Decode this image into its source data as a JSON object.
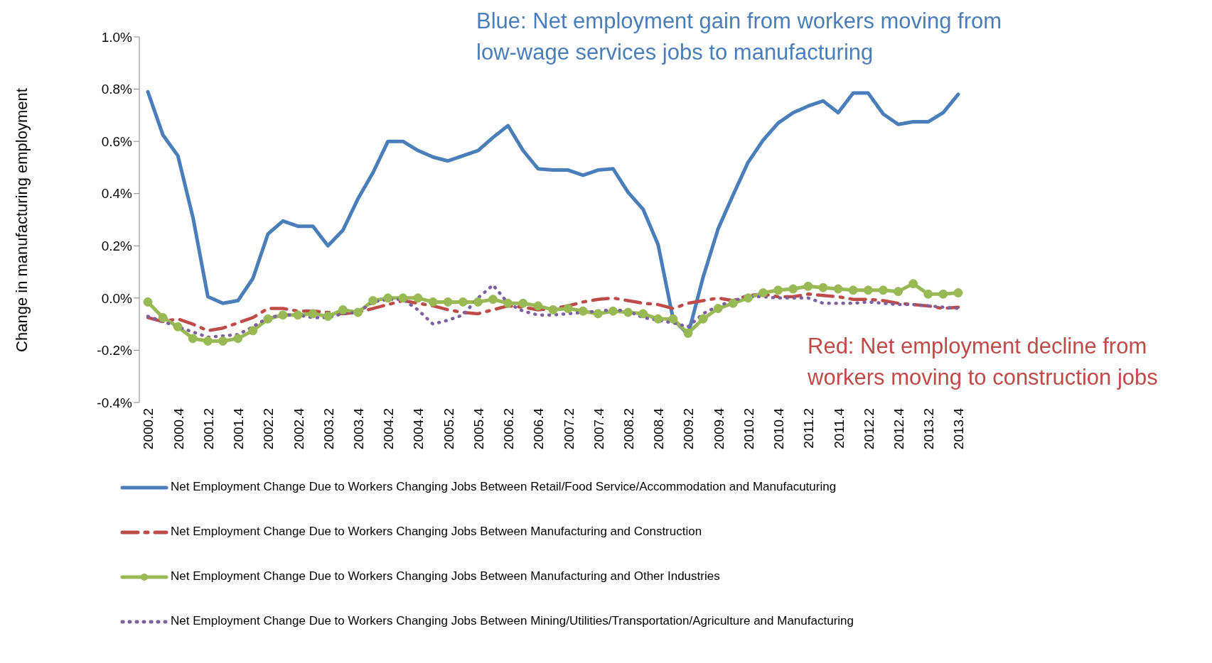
{
  "chart_data": {
    "type": "line",
    "ylabel": "Change in manufacturing employment",
    "annotations": [
      "Blue: Net employment gain from workers moving from low-wage services jobs to manufacturing",
      "Red: Net employment decline from workers moving to construction jobs"
    ],
    "categories": [
      "2000.2",
      null,
      "2000.4",
      null,
      "2001.2",
      null,
      "2001.4",
      null,
      "2002.2",
      null,
      "2002.4",
      null,
      "2003.2",
      null,
      "2003.4",
      null,
      "2004.2",
      null,
      "2004.4",
      null,
      "2005.2",
      null,
      "2005.4",
      null,
      "2006.2",
      null,
      "2006.4",
      null,
      "2007.2",
      null,
      "2007.4",
      null,
      "2008.2",
      null,
      "2008.4",
      null,
      "2009.2",
      null,
      "2009.4",
      null,
      "2010.2",
      null,
      "2010.4",
      null,
      "2011.2",
      null,
      "2011.4",
      null,
      "2012.2",
      null,
      "2012.4",
      null,
      "2013.2",
      null,
      "2013.4"
    ],
    "series": [
      {
        "name": "Net Employment Change Due to Workers Changing Jobs Between Retail/Food Service/Accommodation and Manufacuturing",
        "color": "#4a7ebb",
        "line_style": "solid",
        "marker": "none",
        "values": [
          0.79,
          0.625,
          0.545,
          0.31,
          0.005,
          -0.02,
          -0.01,
          0.075,
          0.245,
          0.295,
          0.275,
          0.275,
          0.2,
          0.26,
          0.38,
          0.48,
          0.6,
          0.6,
          0.565,
          0.54,
          0.525,
          0.545,
          0.565,
          0.615,
          0.66,
          0.565,
          0.495,
          0.49,
          0.49,
          0.47,
          0.49,
          0.495,
          0.405,
          0.34,
          0.205,
          -0.08,
          -0.14,
          0.08,
          0.265,
          0.395,
          0.52,
          0.605,
          0.67,
          0.71,
          0.735,
          0.755,
          0.71,
          0.785,
          0.785,
          0.705,
          0.665,
          0.675,
          0.675,
          0.71,
          0.78
        ]
      },
      {
        "name": "Net Employment Change Due to Workers Changing Jobs Between Manufacturing and Construction",
        "color": "#be4b48",
        "line_style": "dashed",
        "marker": "none",
        "values": [
          -0.075,
          -0.09,
          -0.08,
          -0.1,
          -0.125,
          -0.115,
          -0.095,
          -0.075,
          -0.04,
          -0.04,
          -0.05,
          -0.05,
          -0.055,
          -0.06,
          -0.055,
          -0.04,
          -0.025,
          -0.01,
          -0.02,
          -0.03,
          -0.045,
          -0.055,
          -0.06,
          -0.045,
          -0.03,
          -0.035,
          -0.045,
          -0.04,
          -0.03,
          -0.015,
          -0.005,
          0.0,
          -0.01,
          -0.02,
          -0.025,
          -0.04,
          -0.02,
          -0.01,
          0.0,
          -0.01,
          0.01,
          0.015,
          0.005,
          0.005,
          0.015,
          0.01,
          0.005,
          -0.005,
          -0.005,
          -0.01,
          -0.02,
          -0.025,
          -0.03,
          -0.04,
          -0.035
        ]
      },
      {
        "name": "Net Employment Change Due to Workers Changing Jobs Between Manufacturing and Other Industries",
        "color": "#98b954",
        "line_style": "solid",
        "marker": "circle",
        "values": [
          -0.015,
          -0.075,
          -0.11,
          -0.155,
          -0.165,
          -0.165,
          -0.155,
          -0.125,
          -0.08,
          -0.065,
          -0.065,
          -0.06,
          -0.07,
          -0.045,
          -0.055,
          -0.01,
          0.0,
          0.0,
          0.0,
          -0.015,
          -0.015,
          -0.015,
          -0.015,
          -0.005,
          -0.02,
          -0.02,
          -0.03,
          -0.045,
          -0.04,
          -0.05,
          -0.06,
          -0.05,
          -0.055,
          -0.06,
          -0.08,
          -0.08,
          -0.135,
          -0.08,
          -0.04,
          -0.02,
          0.0,
          0.02,
          0.03,
          0.035,
          0.045,
          0.04,
          0.035,
          0.03,
          0.03,
          0.03,
          0.025,
          0.055,
          0.015,
          0.015,
          0.02
        ]
      },
      {
        "name": "Net Employment Change Due to Workers Changing Jobs Between Mining/Utilities/Transportation/Agriculture and Manufacturing",
        "color": "#7d60a0",
        "line_style": "dotted",
        "marker": "none",
        "values": [
          -0.07,
          -0.09,
          -0.11,
          -0.13,
          -0.15,
          -0.145,
          -0.14,
          -0.11,
          -0.075,
          -0.065,
          -0.065,
          -0.075,
          -0.075,
          -0.06,
          -0.055,
          -0.015,
          -0.005,
          -0.005,
          -0.045,
          -0.1,
          -0.085,
          -0.065,
          0.0,
          0.05,
          -0.02,
          -0.05,
          -0.065,
          -0.065,
          -0.06,
          -0.055,
          -0.05,
          -0.045,
          -0.05,
          -0.075,
          -0.085,
          -0.095,
          -0.11,
          -0.06,
          -0.03,
          -0.01,
          0.005,
          0.005,
          0.0,
          0.0,
          0.0,
          -0.02,
          -0.02,
          -0.02,
          -0.015,
          -0.02,
          -0.025,
          -0.025,
          -0.03,
          -0.035,
          -0.04
        ]
      }
    ],
    "ylim": [
      -0.4,
      1.0
    ],
    "yticks": [
      {
        "value": -0.4,
        "label": "-0.4%"
      },
      {
        "value": -0.2,
        "label": "-0.2%"
      },
      {
        "value": 0,
        "label": "0.0%"
      },
      {
        "value": 0.2,
        "label": "0.2%"
      },
      {
        "value": 0.4,
        "label": "0.4%"
      },
      {
        "value": 0.6,
        "label": "0.6%"
      },
      {
        "value": 0.8,
        "label": "0.8%"
      },
      {
        "value": 1.0,
        "label": "1.0%"
      }
    ],
    "legend": "bottom"
  }
}
